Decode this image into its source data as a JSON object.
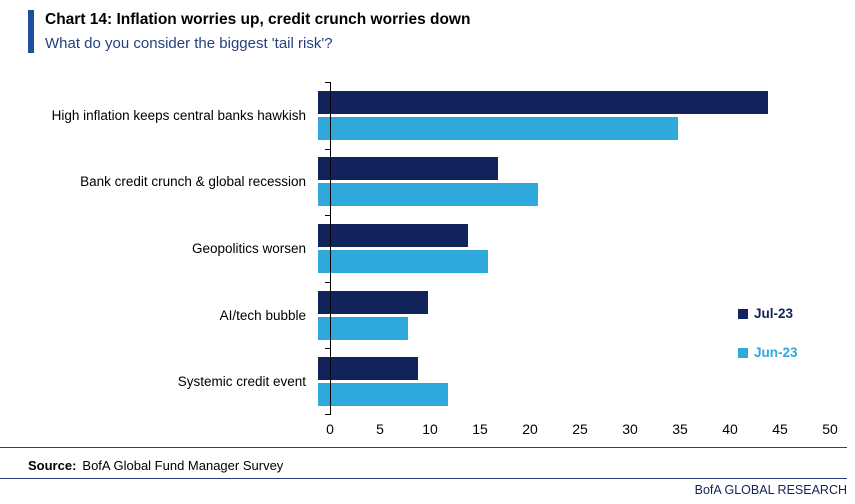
{
  "header": {
    "title": "Chart 14: Inflation worries up, credit crunch worries down",
    "subtitle": "What do you consider the biggest 'tail risk'?"
  },
  "chart_data": {
    "type": "bar",
    "orientation": "horizontal",
    "title": "What do you consider the biggest 'tail risk'?",
    "categories": [
      "High inflation keeps central banks hawkish",
      "Bank credit crunch & global recession",
      "Geopolitics worsen",
      "AI/tech bubble",
      "Systemic credit event"
    ],
    "series": [
      {
        "name": "Jul-23",
        "color": "#11235a",
        "values": [
          45,
          18,
          15,
          11,
          10
        ]
      },
      {
        "name": "Jun-23",
        "color": "#2fa8dc",
        "values": [
          36,
          22,
          17,
          9,
          13
        ]
      }
    ],
    "xlim": [
      0,
      50
    ],
    "xticks": [
      0,
      5,
      10,
      15,
      20,
      25,
      30,
      35,
      40,
      45,
      50
    ],
    "grid": false,
    "legend_position": "right"
  },
  "footer": {
    "source_label": "Source:",
    "source_text": "BofA Global Fund Manager Survey",
    "branding": "BofA GLOBAL RESEARCH"
  },
  "colors": {
    "accent_bar": "#1f4e9c",
    "subtitle_text": "#24417f",
    "rule": "#27408b"
  }
}
